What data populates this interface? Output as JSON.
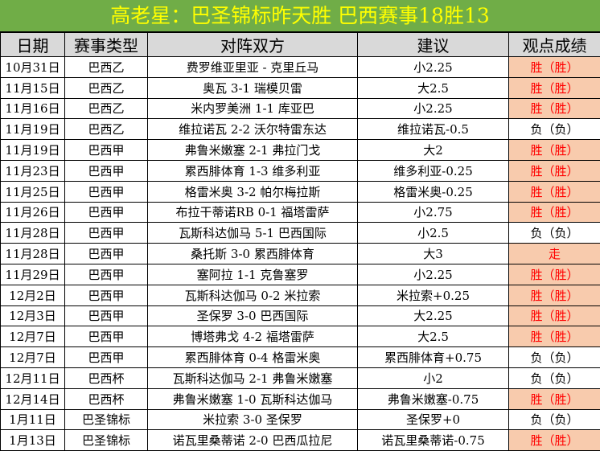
{
  "title": "高老星：巴圣锦标昨天胜 巴西赛事18胜13",
  "colors": {
    "title_bg": "#70ad47",
    "title_text": "#ffff00",
    "header_bg": "#d9d9d9",
    "win_bg": "#f8cbad",
    "win_text": "#ff0000"
  },
  "headers": [
    "日期",
    "赛事类型",
    "对阵双方",
    "建议",
    "观点成绩"
  ],
  "rows": [
    {
      "date": "10月31日",
      "league": "巴西乙",
      "match": "费罗维亚里亚 - 克里丘马",
      "tip": "小2.25",
      "result": "胜（胜）",
      "status": "win"
    },
    {
      "date": "11月15日",
      "league": "巴西乙",
      "match": "奥瓦 3-1 瑞模贝雷",
      "tip": "大2.5",
      "result": "胜（胜）",
      "status": "win"
    },
    {
      "date": "11月16日",
      "league": "巴西乙",
      "match": "米内罗美洲 1-1 库亚巴",
      "tip": "小2.25",
      "result": "胜（胜）",
      "status": "win"
    },
    {
      "date": "11月19日",
      "league": "巴西乙",
      "match": "维拉诺瓦 2-2 沃尔特雷东达",
      "tip": "维拉诺瓦-0.5",
      "result": "负（负）",
      "status": "loss"
    },
    {
      "date": "11月19日",
      "league": "巴西甲",
      "match": "弗鲁米嫩塞 2-1 弗拉门戈",
      "tip": "大2",
      "result": "胜（胜）",
      "status": "win"
    },
    {
      "date": "11月23日",
      "league": "巴西甲",
      "match": "累西腓体育 1-3 维多利亚",
      "tip": "维多利亚-0.25",
      "result": "胜（胜）",
      "status": "win"
    },
    {
      "date": "11月25日",
      "league": "巴西甲",
      "match": "格雷米奥 3-2 帕尔梅拉斯",
      "tip": "格雷米奥-0.25",
      "result": "胜（胜）",
      "status": "win"
    },
    {
      "date": "11月26日",
      "league": "巴西甲",
      "match": "布拉干蒂诺RB 0-1 福塔雷萨",
      "tip": "小2.75",
      "result": "胜（胜）",
      "status": "win"
    },
    {
      "date": "11月28日",
      "league": "巴西甲",
      "match": "瓦斯科达伽马 5-1 巴西国际",
      "tip": "小2.5",
      "result": "负（负）",
      "status": "loss"
    },
    {
      "date": "11月28日",
      "league": "巴西甲",
      "match": "桑托斯 3-0 累西腓体育",
      "tip": "大3",
      "result": "走",
      "status": "push"
    },
    {
      "date": "11月29日",
      "league": "巴西甲",
      "match": "塞阿拉 1-1 克鲁塞罗",
      "tip": "小2.25",
      "result": "胜（胜）",
      "status": "win"
    },
    {
      "date": "12月2日",
      "league": "巴西甲",
      "match": "瓦斯科达伽马 0-2 米拉索",
      "tip": "米拉索+0.25",
      "result": "胜（胜）",
      "status": "win"
    },
    {
      "date": "12月3日",
      "league": "巴西甲",
      "match": "圣保罗 3-0 巴西国际",
      "tip": "大2.25",
      "result": "胜（胜）",
      "status": "win"
    },
    {
      "date": "12月7日",
      "league": "巴西甲",
      "match": "博塔弗戈 4-2 福塔雷萨",
      "tip": "大2.5",
      "result": "胜（胜）",
      "status": "win"
    },
    {
      "date": "12月7日",
      "league": "巴西甲",
      "match": "累西腓体育 0-4 格雷米奥",
      "tip": "累西腓体育+0.75",
      "result": "负（负）",
      "status": "loss"
    },
    {
      "date": "12月11日",
      "league": "巴西杯",
      "match": "瓦斯科达伽马 2-1 弗鲁米嫩塞",
      "tip": "小2",
      "result": "负（负）",
      "status": "loss"
    },
    {
      "date": "12月14日",
      "league": "巴西杯",
      "match": "弗鲁米嫩塞 1-0 瓦斯科达伽马",
      "tip": "弗鲁米嫩塞-0.75",
      "result": "胜（胜）",
      "status": "win"
    },
    {
      "date": "1月11日",
      "league": "巴圣锦标",
      "match": "米拉索 3-0 圣保罗",
      "tip": "圣保罗+0",
      "result": "负（负）",
      "status": "loss"
    },
    {
      "date": "1月13日",
      "league": "巴圣锦标",
      "match": "诺瓦里桑蒂诺 2-0 巴西瓜拉尼",
      "tip": "诺瓦里桑蒂诺-0.75",
      "result": "胜（胜）",
      "status": "win"
    }
  ]
}
